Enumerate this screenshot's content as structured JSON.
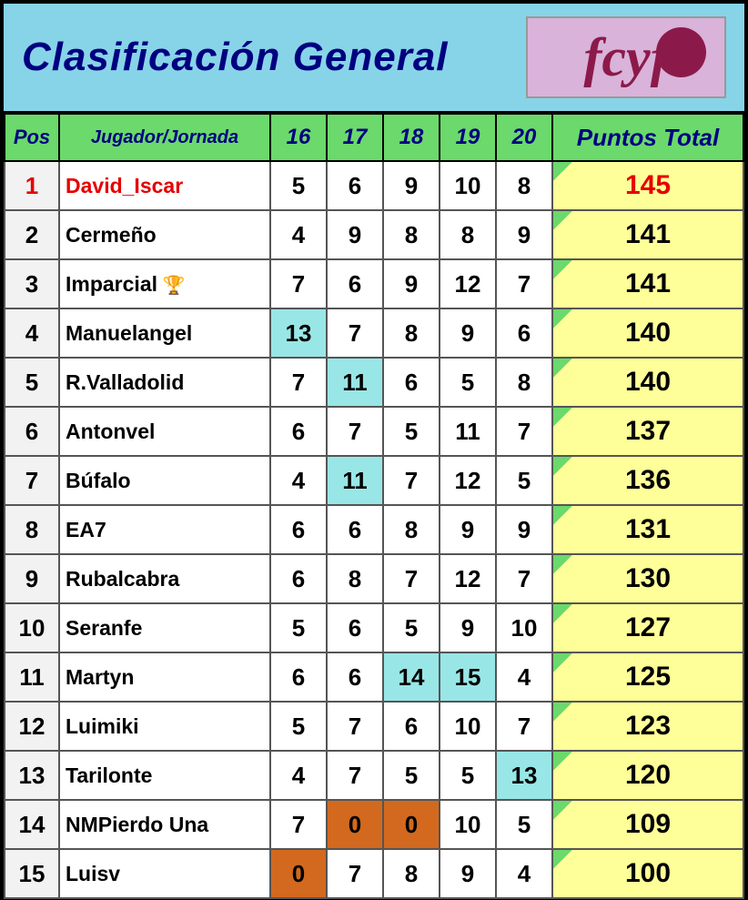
{
  "title": "Clasificación General",
  "logo_text": "fcyf",
  "columns": {
    "pos": "Pos",
    "player": "Jugador/Jornada",
    "j16": "16",
    "j17": "17",
    "j18": "18",
    "j19": "19",
    "j20": "20",
    "total": "Puntos Total"
  },
  "colors": {
    "header_bg": "#87d4e8",
    "title_color": "#000080",
    "table_header_bg": "#6bd96b",
    "total_bg": "#ffff99",
    "highlight_cyan": "#99e6e6",
    "highlight_orange": "#d2691e",
    "leader_color": "#e60000",
    "pos_bg": "#f2f2f2",
    "logo_bg": "#d9b3d9",
    "logo_color": "#8b1a4a"
  },
  "typography": {
    "title_fontsize": 44,
    "header_fontsize": 24,
    "cell_fontsize": 26,
    "total_fontsize": 30,
    "player_fontsize": 23,
    "font_style": "italic-bold"
  },
  "rows": [
    {
      "pos": "1",
      "player": "David_Iscar",
      "leader": true,
      "trophy": false,
      "scores": [
        {
          "v": "5"
        },
        {
          "v": "6"
        },
        {
          "v": "9"
        },
        {
          "v": "10"
        },
        {
          "v": "8"
        }
      ],
      "total": "145"
    },
    {
      "pos": "2",
      "player": "Cermeño",
      "leader": false,
      "trophy": false,
      "scores": [
        {
          "v": "4"
        },
        {
          "v": "9"
        },
        {
          "v": "8"
        },
        {
          "v": "8"
        },
        {
          "v": "9"
        }
      ],
      "total": "141"
    },
    {
      "pos": "3",
      "player": "Imparcial",
      "leader": false,
      "trophy": true,
      "scores": [
        {
          "v": "7"
        },
        {
          "v": "6"
        },
        {
          "v": "9"
        },
        {
          "v": "12"
        },
        {
          "v": "7"
        }
      ],
      "total": "141"
    },
    {
      "pos": "4",
      "player": "Manuelangel",
      "leader": false,
      "trophy": false,
      "scores": [
        {
          "v": "13",
          "hl": "cyan"
        },
        {
          "v": "7"
        },
        {
          "v": "8"
        },
        {
          "v": "9"
        },
        {
          "v": "6"
        }
      ],
      "total": "140"
    },
    {
      "pos": "5",
      "player": "R.Valladolid",
      "leader": false,
      "trophy": false,
      "scores": [
        {
          "v": "7"
        },
        {
          "v": "11",
          "hl": "cyan"
        },
        {
          "v": "6"
        },
        {
          "v": "5"
        },
        {
          "v": "8"
        }
      ],
      "total": "140"
    },
    {
      "pos": "6",
      "player": "Antonvel",
      "leader": false,
      "trophy": false,
      "scores": [
        {
          "v": "6"
        },
        {
          "v": "7"
        },
        {
          "v": "5"
        },
        {
          "v": "11"
        },
        {
          "v": "7"
        }
      ],
      "total": "137"
    },
    {
      "pos": "7",
      "player": "Búfalo",
      "leader": false,
      "trophy": false,
      "scores": [
        {
          "v": "4"
        },
        {
          "v": "11",
          "hl": "cyan"
        },
        {
          "v": "7"
        },
        {
          "v": "12"
        },
        {
          "v": "5"
        }
      ],
      "total": "136"
    },
    {
      "pos": "8",
      "player": "EA7",
      "leader": false,
      "trophy": false,
      "scores": [
        {
          "v": "6"
        },
        {
          "v": "6"
        },
        {
          "v": "8"
        },
        {
          "v": "9"
        },
        {
          "v": "9"
        }
      ],
      "total": "131"
    },
    {
      "pos": "9",
      "player": "Rubalcabra",
      "leader": false,
      "trophy": false,
      "scores": [
        {
          "v": "6"
        },
        {
          "v": "8"
        },
        {
          "v": "7"
        },
        {
          "v": "12"
        },
        {
          "v": "7"
        }
      ],
      "total": "130"
    },
    {
      "pos": "10",
      "player": "Seranfe",
      "leader": false,
      "trophy": false,
      "scores": [
        {
          "v": "5"
        },
        {
          "v": "6"
        },
        {
          "v": "5"
        },
        {
          "v": "9"
        },
        {
          "v": "10"
        }
      ],
      "total": "127"
    },
    {
      "pos": "11",
      "player": "Martyn",
      "leader": false,
      "trophy": false,
      "scores": [
        {
          "v": "6"
        },
        {
          "v": "6"
        },
        {
          "v": "14",
          "hl": "cyan"
        },
        {
          "v": "15",
          "hl": "cyan"
        },
        {
          "v": "4"
        }
      ],
      "total": "125"
    },
    {
      "pos": "12",
      "player": "Luimiki",
      "leader": false,
      "trophy": false,
      "scores": [
        {
          "v": "5"
        },
        {
          "v": "7"
        },
        {
          "v": "6"
        },
        {
          "v": "10"
        },
        {
          "v": "7"
        }
      ],
      "total": "123"
    },
    {
      "pos": "13",
      "player": "Tarilonte",
      "leader": false,
      "trophy": false,
      "scores": [
        {
          "v": "4"
        },
        {
          "v": "7"
        },
        {
          "v": "5"
        },
        {
          "v": "5"
        },
        {
          "v": "13",
          "hl": "cyan"
        }
      ],
      "total": "120"
    },
    {
      "pos": "14",
      "player": "NMPierdo Una",
      "leader": false,
      "trophy": false,
      "scores": [
        {
          "v": "7"
        },
        {
          "v": "0",
          "hl": "orange"
        },
        {
          "v": "0",
          "hl": "orange"
        },
        {
          "v": "10"
        },
        {
          "v": "5"
        }
      ],
      "total": "109"
    },
    {
      "pos": "15",
      "player": "Luisv",
      "leader": false,
      "trophy": false,
      "scores": [
        {
          "v": "0",
          "hl": "orange"
        },
        {
          "v": "7"
        },
        {
          "v": "8"
        },
        {
          "v": "9"
        },
        {
          "v": "4"
        }
      ],
      "total": "100"
    }
  ]
}
